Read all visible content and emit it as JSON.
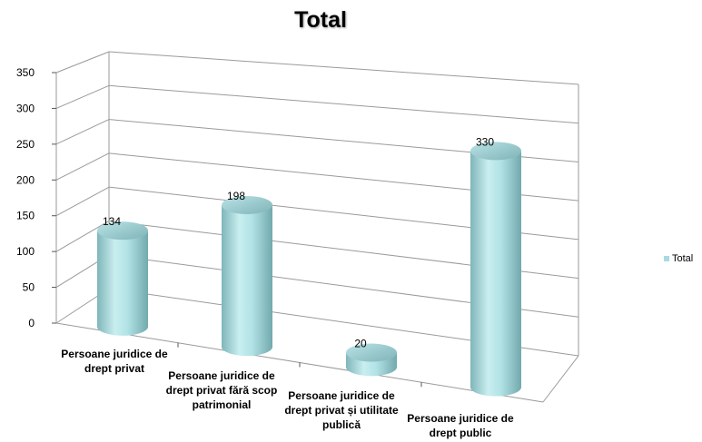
{
  "chart_data": {
    "type": "bar",
    "title": "Total",
    "categories": [
      [
        "Persoane juridice de",
        "drept privat"
      ],
      [
        "Persoane juridice de",
        "drept privat fără scop",
        "patrimonial"
      ],
      [
        "Persoane juridice de",
        "drept privat și utilitate",
        "publică"
      ],
      [
        "Persoane juridice de",
        "drept public"
      ]
    ],
    "series": [
      {
        "name": "Total",
        "values": [
          134,
          198,
          20,
          330
        ]
      }
    ],
    "ylim": [
      0,
      350
    ],
    "yticks": [
      0,
      50,
      100,
      150,
      200,
      250,
      300,
      350
    ],
    "ytick_labels": [
      "0",
      "50",
      "100",
      "150",
      "200",
      "250",
      "300",
      "350"
    ],
    "data_labels": [
      "134",
      "198",
      "20",
      "330"
    ],
    "grid": true,
    "legend_position": "right",
    "colors": {
      "bar": "#a8dbdf",
      "bar_dark": "#6fa9ae",
      "bar_light": "#e4f6f7",
      "top": "#8fc3c7"
    }
  }
}
